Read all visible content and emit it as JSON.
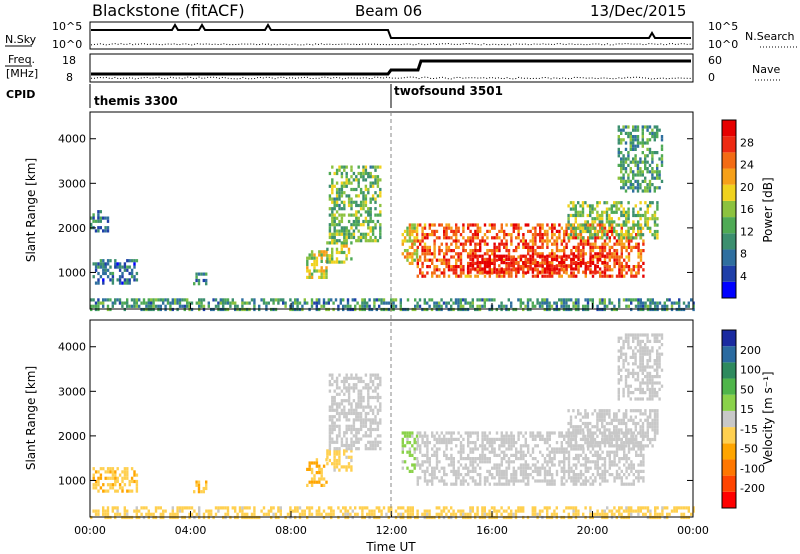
{
  "header": {
    "station": "Blackstone (fitACF)",
    "beam": "Beam 06",
    "date": "13/Dec/2015"
  },
  "strip_labels": {
    "left": {
      "nsky": "N.Sky",
      "freq_line1": "Freq.",
      "freq_unit": "[MHz]",
      "cpid": "CPID"
    },
    "right": {
      "nsearch": "N.Search",
      "nave": "Nave"
    },
    "nsky_ticks": [
      "10^5",
      "10^0"
    ],
    "nsearch_ticks": [
      "10^5",
      "10^0"
    ],
    "freq_ticks": [
      "18",
      "8"
    ],
    "nave_ticks": [
      "60",
      "0"
    ]
  },
  "cpid_segments": [
    {
      "label": "themis 3300",
      "start_hour": 0
    },
    {
      "label": "twofsound 3501",
      "start_hour": 12
    }
  ],
  "colors": {
    "power_scale": [
      "#0000ff",
      "#1f3fa8",
      "#2f6f9f",
      "#3c8f6f",
      "#4faa55",
      "#8cc23f",
      "#f0d21e",
      "#f6a019",
      "#f36b14",
      "#ee2a12",
      "#e60000"
    ],
    "velocity_scale": [
      "#ff0000",
      "#ff4400",
      "#ff7700",
      "#ffa500",
      "#ffd050",
      "#c8c8c8",
      "#8ad24a",
      "#4fb54a",
      "#2e8a5e",
      "#2a6aa0",
      "#1a2aa0"
    ],
    "ground_scatter": "#c8c8c8"
  },
  "chart_data": [
    {
      "type": "heatmap",
      "title": "",
      "xlabel": "",
      "ylabel": "Slant Range [km]",
      "xlim": [
        0,
        24
      ],
      "ylim": [
        180,
        4600
      ],
      "yticks": [
        "1000",
        "2000",
        "3000",
        "4000"
      ],
      "colorbar": {
        "label": "Power [dB]",
        "ticks": [
          "4",
          "8",
          "12",
          "16",
          "20",
          "24",
          "28"
        ],
        "range": [
          0,
          30
        ]
      },
      "regions": [
        {
          "t0": 0.1,
          "t1": 1.9,
          "r0": 750,
          "r1": 1300,
          "value": 7
        },
        {
          "t0": 0.0,
          "t1": 0.8,
          "r0": 1900,
          "r1": 2400,
          "value": 8
        },
        {
          "t0": 4.1,
          "t1": 4.6,
          "r0": 750,
          "r1": 1000,
          "value": 9
        },
        {
          "t0": 8.6,
          "t1": 9.4,
          "r0": 900,
          "r1": 1500,
          "value": 17
        },
        {
          "t0": 9.4,
          "t1": 10.4,
          "r0": 1200,
          "r1": 1700,
          "value": 15
        },
        {
          "t0": 9.5,
          "t1": 11.6,
          "r0": 1700,
          "r1": 3400,
          "value": 13
        },
        {
          "t0": 12.4,
          "t1": 13.0,
          "r0": 1200,
          "r1": 2100,
          "value": 18
        },
        {
          "t0": 13.0,
          "t1": 22.0,
          "r0": 900,
          "r1": 2100,
          "value": 24
        },
        {
          "t0": 15.0,
          "t1": 20.5,
          "r0": 1000,
          "r1": 1400,
          "value": 28
        },
        {
          "t0": 19.0,
          "t1": 22.6,
          "r0": 1800,
          "r1": 2600,
          "value": 14
        },
        {
          "t0": 0.0,
          "t1": 24.0,
          "r0": 180,
          "r1": 420,
          "value": 10
        },
        {
          "t0": 21.0,
          "t1": 22.8,
          "r0": 2800,
          "r1": 4300,
          "value": 11
        }
      ]
    },
    {
      "type": "heatmap",
      "title": "",
      "xlabel": "Time UT",
      "ylabel": "Slant Range [km]",
      "xlim": [
        0,
        24
      ],
      "ylim": [
        180,
        4600
      ],
      "xticks": [
        "00:00",
        "04:00",
        "08:00",
        "12:00",
        "16:00",
        "20:00",
        "00:00"
      ],
      "yticks": [
        "1000",
        "2000",
        "3000",
        "4000"
      ],
      "colorbar": {
        "label": "Velocity [m s⁻¹]",
        "ticks": [
          "200",
          "100",
          "50",
          "15",
          "-15",
          "-50",
          "-100",
          "-200"
        ],
        "range": [
          -250,
          250
        ]
      },
      "regions": [
        {
          "t0": 0.1,
          "t1": 1.9,
          "r0": 750,
          "r1": 1300,
          "value": -60
        },
        {
          "t0": 4.1,
          "t1": 4.6,
          "r0": 750,
          "r1": 1000,
          "value": -60
        },
        {
          "t0": 8.6,
          "t1": 9.4,
          "r0": 900,
          "r1": 1500,
          "value": -60
        },
        {
          "t0": 9.4,
          "t1": 10.4,
          "r0": 1200,
          "r1": 1700,
          "value": -40
        },
        {
          "t0": 9.5,
          "t1": 11.6,
          "r0": 1700,
          "r1": 3400,
          "value": 0
        },
        {
          "t0": 12.4,
          "t1": 13.0,
          "r0": 1200,
          "r1": 2100,
          "value": 30
        },
        {
          "t0": 13.0,
          "t1": 22.0,
          "r0": 900,
          "r1": 2100,
          "value": 0
        },
        {
          "t0": 19.0,
          "t1": 22.6,
          "r0": 1800,
          "r1": 2600,
          "value": 0
        },
        {
          "t0": 0.0,
          "t1": 24.0,
          "r0": 180,
          "r1": 420,
          "value": -40
        },
        {
          "t0": 21.0,
          "t1": 22.8,
          "r0": 2800,
          "r1": 4300,
          "value": 0
        }
      ]
    }
  ]
}
